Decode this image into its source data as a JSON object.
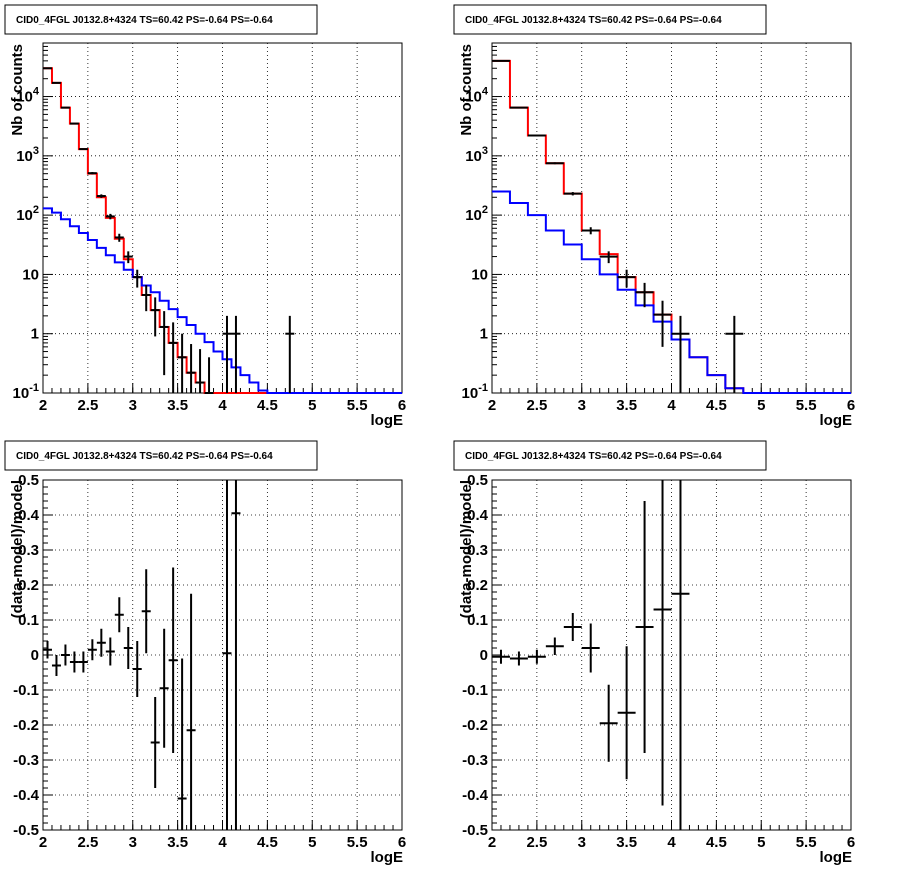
{
  "pad_title": "CID0_4FGL J0132.8+4324 TS=60.42 PS=-0.64 PS=-0.64",
  "colors": {
    "data": "#000000",
    "total_model": "#ff0000",
    "background_model": "#0000ff",
    "grid": "#000000"
  },
  "chart_data": [
    {
      "type": "line",
      "title": "CID0_4FGL J0132.8+4324 TS=60.42 PS=-0.64 PS=-0.64",
      "xlabel": "logE",
      "ylabel": "Nb of counts",
      "xlim": [
        2,
        6
      ],
      "ylim": [
        0.1,
        80000
      ],
      "yscale": "log",
      "grid": true,
      "x_ticks": [
        "2",
        "2.5",
        "3",
        "3.5",
        "4",
        "4.5",
        "5",
        "5.5",
        "6"
      ],
      "y_ticks": [
        "10^-1",
        "1",
        "10",
        "10^2",
        "10^3",
        "10^4"
      ],
      "bin_width": 0.1,
      "series": [
        {
          "style": "step",
          "color": "#ff0000",
          "x": [
            2.0,
            2.1,
            2.2,
            2.3,
            2.4,
            2.5,
            2.6,
            2.7,
            2.8,
            2.9,
            3.0,
            3.1,
            3.2,
            3.3,
            3.4,
            3.5,
            3.6,
            3.7,
            3.8,
            3.9,
            4.0,
            4.1,
            4.2,
            4.3,
            4.4,
            4.5,
            4.6,
            4.7,
            4.8,
            4.9,
            5.0,
            5.1,
            5.2,
            5.3,
            5.4,
            5.5,
            5.6,
            5.7,
            5.8,
            5.9
          ],
          "values": [
            30000,
            17000,
            6500,
            3500,
            1300,
            500,
            200,
            90,
            40,
            18,
            9,
            4.5,
            2.5,
            1.3,
            0.7,
            0.4,
            0.22,
            0.15,
            0.1,
            0.1,
            0.1,
            0.1,
            0.1,
            0.1,
            0.1,
            0.1,
            0.1,
            0.1,
            0.1,
            0.1,
            0.1,
            0.1,
            0.1,
            0.1,
            0.1,
            0.1,
            0.1,
            0.1,
            0.1,
            0.1
          ]
        },
        {
          "style": "step",
          "color": "#0000ff",
          "x": [
            2.0,
            2.1,
            2.2,
            2.3,
            2.4,
            2.5,
            2.6,
            2.7,
            2.8,
            2.9,
            3.0,
            3.1,
            3.2,
            3.3,
            3.4,
            3.5,
            3.6,
            3.7,
            3.8,
            3.9,
            4.0,
            4.1,
            4.2,
            4.3,
            4.4,
            4.5,
            4.6,
            4.7,
            4.8,
            4.9,
            5.0,
            5.1,
            5.2,
            5.3,
            5.4,
            5.5,
            5.6,
            5.7,
            5.8,
            5.9
          ],
          "values": [
            130,
            110,
            85,
            65,
            50,
            38,
            28,
            21,
            16,
            12,
            9,
            6.5,
            5,
            3.6,
            2.6,
            1.9,
            1.4,
            1.0,
            0.72,
            0.5,
            0.37,
            0.27,
            0.2,
            0.15,
            0.11,
            0.1,
            0.1,
            0.1,
            0.1,
            0.1,
            0.1,
            0.1,
            0.1,
            0.1,
            0.1,
            0.1,
            0.1,
            0.1,
            0.1,
            0.1
          ]
        },
        {
          "style": "errorbar",
          "color": "#000000",
          "x": [
            2.05,
            2.15,
            2.25,
            2.35,
            2.45,
            2.55,
            2.65,
            2.75,
            2.85,
            2.95,
            3.05,
            3.15,
            3.25,
            3.35,
            3.45,
            3.55,
            3.65,
            3.75,
            3.85,
            4.05,
            4.15,
            4.75
          ],
          "values": [
            30000,
            17000,
            6500,
            3500,
            1300,
            510,
            210,
            95,
            42,
            20,
            9,
            4.5,
            2.5,
            1.3,
            0.7,
            0.4,
            0.22,
            0.15,
            0.1,
            1,
            1,
            1
          ],
          "err": [
            170,
            130,
            80,
            60,
            36,
            22,
            14,
            10,
            6.5,
            4.5,
            3,
            2.1,
            1.6,
            1.1,
            0.85,
            0.6,
            0.45,
            0.4,
            0.3,
            1,
            1,
            1
          ]
        }
      ]
    },
    {
      "type": "line",
      "title": "CID0_4FGL J0132.8+4324 TS=60.42 PS=-0.64 PS=-0.64",
      "xlabel": "logE",
      "ylabel": "Nb of counts",
      "xlim": [
        2,
        6
      ],
      "ylim": [
        0.1,
        80000
      ],
      "yscale": "log",
      "grid": true,
      "x_ticks": [
        "2",
        "2.5",
        "3",
        "3.5",
        "4",
        "4.5",
        "5",
        "5.5",
        "6"
      ],
      "y_ticks": [
        "10^-1",
        "1",
        "10",
        "10^2",
        "10^3",
        "10^4"
      ],
      "bin_width": 0.2,
      "series": [
        {
          "style": "step",
          "color": "#ff0000",
          "x": [
            2.0,
            2.2,
            2.4,
            2.6,
            2.8,
            3.0,
            3.2,
            3.4,
            3.6,
            3.8,
            4.0,
            4.2,
            4.4,
            4.6,
            4.8,
            5.0,
            5.2,
            5.4,
            5.6,
            5.8
          ],
          "values": [
            40000,
            6500,
            2200,
            750,
            230,
            55,
            22,
            9,
            5,
            2.1,
            0.8,
            0.4,
            0.2,
            0.12,
            0.1,
            0.1,
            0.1,
            0.1,
            0.1,
            0.1
          ]
        },
        {
          "style": "step",
          "color": "#0000ff",
          "x": [
            2.0,
            2.2,
            2.4,
            2.6,
            2.8,
            3.0,
            3.2,
            3.4,
            3.6,
            3.8,
            4.0,
            4.2,
            4.4,
            4.6,
            4.8,
            5.0,
            5.2,
            5.4,
            5.6,
            5.8
          ],
          "values": [
            250,
            160,
            100,
            55,
            32,
            18,
            10,
            5.5,
            3,
            1.6,
            0.8,
            0.4,
            0.2,
            0.12,
            0.1,
            0.1,
            0.1,
            0.1,
            0.1,
            0.1
          ]
        },
        {
          "style": "errorbar",
          "color": "#000000",
          "x": [
            2.1,
            2.3,
            2.5,
            2.7,
            2.9,
            3.1,
            3.3,
            3.5,
            3.7,
            3.9,
            4.1,
            4.7
          ],
          "values": [
            40000,
            6500,
            2200,
            750,
            230,
            55,
            20,
            9,
            5,
            2.1,
            1,
            1
          ],
          "err": [
            200,
            80,
            47,
            27,
            15,
            7.5,
            4.5,
            3,
            2.2,
            1.5,
            1,
            1
          ]
        }
      ]
    },
    {
      "type": "scatter",
      "title": "CID0_4FGL J0132.8+4324 TS=60.42 PS=-0.64 PS=-0.64",
      "xlabel": "logE",
      "ylabel": "(data-model)/model",
      "xlim": [
        2,
        6
      ],
      "ylim": [
        -0.5,
        0.5
      ],
      "grid": true,
      "x_ticks": [
        "2",
        "2.5",
        "3",
        "3.5",
        "4",
        "4.5",
        "5",
        "5.5",
        "6"
      ],
      "y_ticks": [
        "-0.5",
        "-0.4",
        "-0.3",
        "-0.2",
        "-0.1",
        "0",
        "0.1",
        "0.2",
        "0.3",
        "0.4",
        "0.5"
      ],
      "bin_width": 0.1,
      "series": [
        {
          "style": "errorbar",
          "color": "#000000",
          "x": [
            2.05,
            2.15,
            2.25,
            2.35,
            2.45,
            2.55,
            2.65,
            2.75,
            2.85,
            2.95,
            3.05,
            3.15,
            3.25,
            3.35,
            3.45,
            3.55,
            3.65,
            4.05,
            4.15
          ],
          "values": [
            0.015,
            -0.03,
            0.0,
            -0.02,
            -0.02,
            0.015,
            0.035,
            0.01,
            0.115,
            0.02,
            -0.04,
            0.125,
            -0.25,
            -0.095,
            -0.015,
            -0.41,
            -0.215,
            0.005,
            0.405
          ],
          "err": [
            0.025,
            0.03,
            0.03,
            0.03,
            0.03,
            0.03,
            0.04,
            0.04,
            0.05,
            0.06,
            0.08,
            0.12,
            0.13,
            0.17,
            0.265,
            0.4,
            0.39,
            1.0,
            1.0
          ]
        }
      ]
    },
    {
      "type": "scatter",
      "title": "CID0_4FGL J0132.8+4324 TS=60.42 PS=-0.64 PS=-0.64",
      "xlabel": "logE",
      "ylabel": "(data-model)/model",
      "xlim": [
        2,
        6
      ],
      "ylim": [
        -0.5,
        0.5
      ],
      "grid": true,
      "x_ticks": [
        "2",
        "2.5",
        "3",
        "3.5",
        "4",
        "4.5",
        "5",
        "5.5",
        "6"
      ],
      "y_ticks": [
        "-0.5",
        "-0.4",
        "-0.3",
        "-0.2",
        "-0.1",
        "0",
        "0.1",
        "0.2",
        "0.3",
        "0.4",
        "0.5"
      ],
      "bin_width": 0.2,
      "series": [
        {
          "style": "errorbar",
          "color": "#000000",
          "x": [
            2.1,
            2.3,
            2.5,
            2.7,
            2.9,
            3.1,
            3.3,
            3.5,
            3.7,
            3.9,
            4.1
          ],
          "values": [
            -0.005,
            -0.01,
            -0.005,
            0.025,
            0.08,
            0.02,
            -0.195,
            -0.165,
            0.08,
            0.13,
            0.175
          ],
          "err": [
            0.02,
            0.02,
            0.02,
            0.025,
            0.04,
            0.07,
            0.11,
            0.19,
            0.36,
            0.56,
            1.0
          ]
        }
      ]
    }
  ]
}
